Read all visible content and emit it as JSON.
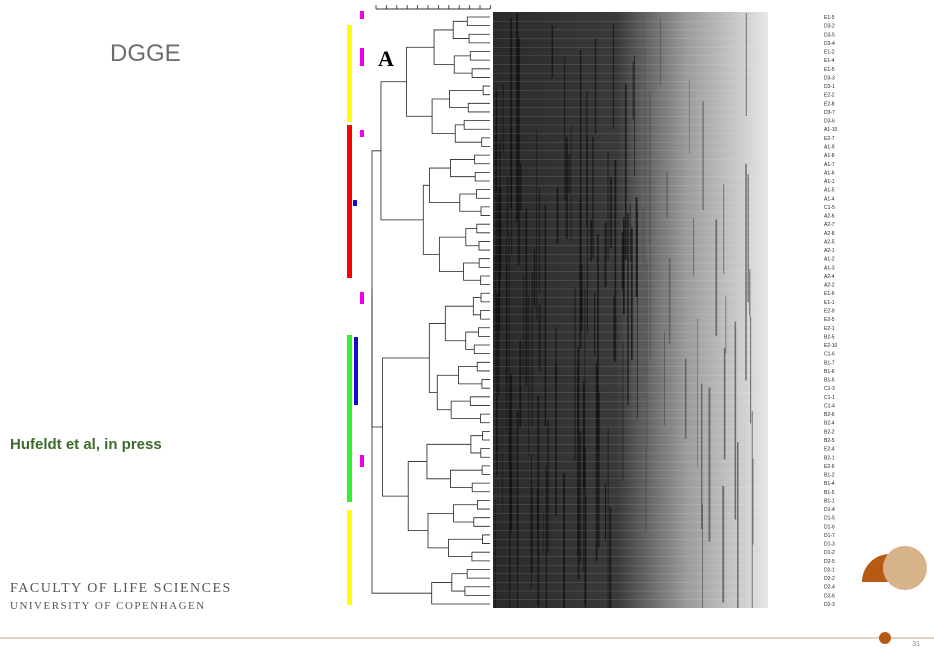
{
  "header": {
    "title": "DGGE"
  },
  "figure": {
    "panel_label": "A",
    "lane_labels": [
      "E1-5",
      "D3-2",
      "D3-5",
      "D3-4",
      "E1-2",
      "E1-4",
      "E1-5",
      "D3-3",
      "D3-1",
      "E2-2",
      "E2-8",
      "D3-7",
      "D3-6",
      "A1-10",
      "E2-7",
      "A1-9",
      "A1-8",
      "A1-7",
      "A1-6",
      "A1-1",
      "A1-5",
      "A1-4",
      "C1-5",
      "A2-6",
      "A2-7",
      "A2-8",
      "A2-5",
      "A2-1",
      "A1-2",
      "A1-3",
      "A2-4",
      "A2-2",
      "E1-6",
      "E1-1",
      "E2-9",
      "E2-5",
      "E2-1",
      "B2-5",
      "E2-10",
      "C1-6",
      "B1-7",
      "B1-6",
      "B1-5",
      "C1-3",
      "C1-1",
      "C1-4",
      "B2-6",
      "B2-4",
      "B2-2",
      "B2-5",
      "E2-4",
      "B2-1",
      "E2-6",
      "B1-2",
      "B1-4",
      "B1-5",
      "B1-1",
      "D1-4",
      "D1-5",
      "D1-6",
      "D1-7",
      "D1-3",
      "D1-2",
      "D2-5",
      "D2-1",
      "D2-2",
      "D2-4",
      "D2-6",
      "D2-3"
    ]
  },
  "citation": "Hufeldt et al, in press",
  "footer": {
    "faculty": "FACULTY OF LIFE SCIENCES",
    "university": "UNIVERSITY OF COPENHAGEN",
    "page_number": "31"
  }
}
